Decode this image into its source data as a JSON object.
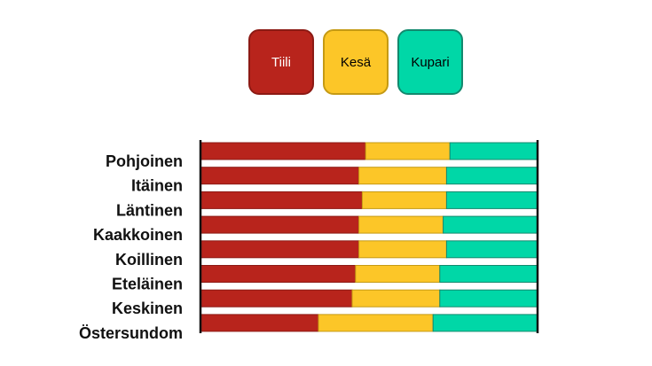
{
  "chart_data": {
    "type": "bar",
    "orientation": "horizontal",
    "stacked": true,
    "normalized": true,
    "categories": [
      "Pohjoinen",
      "Itäinen",
      "Läntinen",
      "Kaakkoinen",
      "Koillinen",
      "Eteläinen",
      "Keskinen",
      "Östersundom"
    ],
    "series": [
      {
        "name": "Tiili",
        "color": "#b8241c",
        "border": "#8c1a14",
        "values": [
          49,
          47,
          48,
          47,
          47,
          46,
          45,
          35
        ]
      },
      {
        "name": "Kesä",
        "color": "#fcc628",
        "border": "#c59a14",
        "values": [
          25,
          26,
          25,
          25,
          26,
          25,
          26,
          34
        ]
      },
      {
        "name": "Kupari",
        "color": "#00d7a7",
        "border": "#13896e",
        "values": [
          26,
          27,
          27,
          28,
          27,
          29,
          29,
          31
        ]
      }
    ],
    "xlim": [
      0,
      100
    ],
    "legend_position": "top",
    "grid": false
  }
}
